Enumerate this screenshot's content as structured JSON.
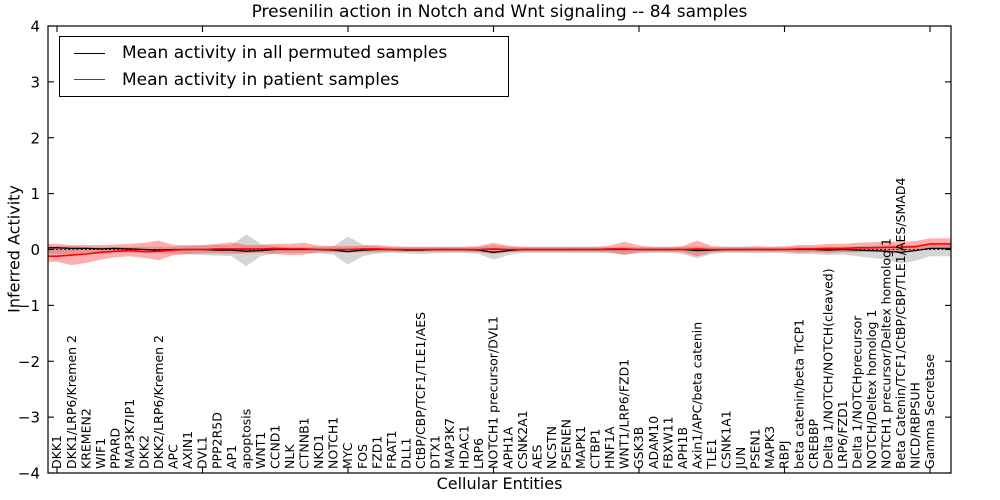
{
  "figure": {
    "title": "Presenilin action in Notch and Wnt signaling -- 84 samples",
    "xlabel": "Cellular Entities",
    "ylabel": "Inferred Activity",
    "yticks": [
      -4,
      -3,
      -2,
      -1,
      0,
      1,
      2,
      3,
      4
    ],
    "xtick_interval": 10,
    "frame_color": "#000000",
    "background": "#ffffff"
  },
  "chart_data": {
    "type": "line",
    "title": "Presenilin action in Notch and Wnt signaling -- 84 samples",
    "xlabel": "Cellular Entities",
    "ylabel": "Inferred Activity",
    "ylim": [
      -4,
      4
    ],
    "grid": false,
    "legend_position": "upper left",
    "zero_line": {
      "style": "dotted",
      "color": "#000000",
      "y": 0
    },
    "categories": [
      "DKK1",
      "DKK1/LRP6/Kremen 2",
      "KREMEN2",
      "WIF1",
      "PPARD",
      "MAP3K7IP1",
      "DKK2",
      "DKK2/LRP6/Kremen 2",
      "APC",
      "AXIN1",
      "DVL1",
      "PPP2R5D",
      "AP1",
      "apoptosis",
      "WNT1",
      "CCND1",
      "NLK",
      "CTNNB1",
      "NKD1",
      "NOTCH1",
      "MYC",
      "FOS",
      "FZD1",
      "FRAT1",
      "DLL1",
      "CtBP/CBP/TCF1/TLE1/AES",
      "DTX1",
      "MAP3K7",
      "HDAC1",
      "LRP6",
      "NOTCH1 precursor/DVL1",
      "APH1A",
      "CSNK2A1",
      "AES",
      "NCSTN",
      "PSENEN",
      "MAPK1",
      "CTBP1",
      "HNF1A",
      "WNT1/LRP6/FZD1",
      "GSK3B",
      "ADAM10",
      "FBXW11",
      "APH1B",
      "Axin1/APC/beta catenin",
      "TLE1",
      "CSNK1A1",
      "JUN",
      "PSEN1",
      "MAPK3",
      "RBPJ",
      "beta catenin/beta TrCP1",
      "CREBBP",
      "Delta 1/NOTCH/NOTCH(cleaved)",
      "LRP6/FZD1",
      "Delta 1/NOTCHprecursor",
      "NOTCH/Deltex homolog 1",
      "NOTCH1 precursor/Deltex homolog 1",
      "Beta Catenin/TCF1/CtBP/CBP/TLE1/AES/SMAD4",
      "NICD/RBPSUH",
      "Gamma Secretase"
    ],
    "series": [
      {
        "name": "Mean activity in all permuted samples",
        "color": "#000000",
        "band_color": "rgba(115,115,115,0.30)",
        "values": [
          0.03,
          0.02,
          0.02,
          0.01,
          0.02,
          0.01,
          0.0,
          -0.01,
          0.0,
          0.0,
          0.0,
          -0.01,
          -0.01,
          -0.03,
          -0.02,
          0.0,
          0.0,
          0.0,
          0.0,
          -0.01,
          -0.04,
          -0.01,
          0.0,
          0.0,
          -0.01,
          -0.01,
          0.0,
          0.0,
          0.0,
          -0.01,
          -0.05,
          -0.02,
          0.0,
          0.0,
          0.0,
          0.0,
          0.0,
          0.0,
          0.0,
          0.0,
          0.0,
          0.0,
          0.0,
          0.0,
          -0.02,
          -0.01,
          0.0,
          0.0,
          0.0,
          0.0,
          0.0,
          0.0,
          0.0,
          -0.01,
          0.0,
          -0.01,
          -0.02,
          -0.03,
          -0.05,
          -0.02,
          0.02
        ],
        "band_upper": [
          0.06,
          0.06,
          0.05,
          0.05,
          0.05,
          0.05,
          0.05,
          0.05,
          0.05,
          0.06,
          0.07,
          0.08,
          0.08,
          0.27,
          0.1,
          0.06,
          0.04,
          0.04,
          0.05,
          0.06,
          0.23,
          0.09,
          0.05,
          0.04,
          0.04,
          0.04,
          0.04,
          0.04,
          0.04,
          0.05,
          0.08,
          0.05,
          0.04,
          0.04,
          0.04,
          0.04,
          0.04,
          0.04,
          0.04,
          0.05,
          0.04,
          0.04,
          0.04,
          0.05,
          0.06,
          0.04,
          0.04,
          0.04,
          0.04,
          0.04,
          0.04,
          0.05,
          0.05,
          0.05,
          0.05,
          0.06,
          0.07,
          0.07,
          0.08,
          0.08,
          0.08
        ],
        "band_lower": [
          -0.08,
          -0.08,
          -0.07,
          -0.07,
          -0.06,
          -0.06,
          -0.06,
          -0.07,
          -0.08,
          -0.09,
          -0.1,
          -0.11,
          -0.12,
          -0.3,
          -0.12,
          -0.07,
          -0.06,
          -0.06,
          -0.07,
          -0.09,
          -0.27,
          -0.12,
          -0.07,
          -0.06,
          -0.07,
          -0.08,
          -0.07,
          -0.06,
          -0.06,
          -0.08,
          -0.18,
          -0.1,
          -0.06,
          -0.06,
          -0.06,
          -0.06,
          -0.07,
          -0.06,
          -0.07,
          -0.08,
          -0.07,
          -0.06,
          -0.06,
          -0.08,
          -0.16,
          -0.08,
          -0.06,
          -0.06,
          -0.07,
          -0.06,
          -0.07,
          -0.08,
          -0.08,
          -0.1,
          -0.09,
          -0.12,
          -0.15,
          -0.18,
          -0.25,
          -0.2,
          -0.12
        ]
      },
      {
        "name": "Mean activity in patient samples",
        "color": "#ff0000",
        "band_color": "rgba(255,40,40,0.38)",
        "values": [
          -0.12,
          -0.1,
          -0.08,
          -0.05,
          -0.03,
          -0.02,
          -0.04,
          -0.03,
          -0.01,
          0.0,
          0.0,
          0.01,
          0.01,
          0.01,
          0.01,
          0.02,
          0.01,
          0.01,
          0.0,
          0.0,
          0.0,
          0.01,
          0.01,
          0.0,
          0.0,
          0.0,
          0.0,
          0.0,
          0.0,
          0.0,
          0.01,
          0.0,
          0.0,
          0.0,
          0.0,
          0.0,
          0.0,
          0.0,
          0.01,
          0.01,
          0.0,
          0.0,
          0.0,
          0.0,
          0.01,
          0.0,
          0.0,
          0.0,
          0.0,
          0.0,
          0.0,
          0.01,
          0.01,
          0.02,
          0.02,
          0.03,
          0.03,
          0.04,
          0.04,
          0.05,
          0.1
        ],
        "band_upper": [
          0.1,
          0.08,
          0.08,
          0.08,
          0.09,
          0.1,
          0.12,
          0.16,
          0.08,
          0.08,
          0.08,
          0.1,
          0.13,
          0.08,
          0.08,
          0.1,
          0.1,
          0.12,
          0.07,
          0.06,
          0.06,
          0.07,
          0.08,
          0.06,
          0.05,
          0.05,
          0.05,
          0.05,
          0.05,
          0.06,
          0.12,
          0.07,
          0.05,
          0.05,
          0.05,
          0.05,
          0.05,
          0.05,
          0.07,
          0.14,
          0.07,
          0.05,
          0.05,
          0.06,
          0.16,
          0.06,
          0.05,
          0.05,
          0.06,
          0.05,
          0.06,
          0.08,
          0.08,
          0.1,
          0.1,
          0.12,
          0.13,
          0.14,
          0.14,
          0.15,
          0.2
        ],
        "band_lower": [
          -0.22,
          -0.28,
          -0.24,
          -0.18,
          -0.14,
          -0.12,
          -0.15,
          -0.19,
          -0.1,
          -0.08,
          -0.07,
          -0.07,
          -0.08,
          -0.07,
          -0.06,
          -0.08,
          -0.1,
          -0.09,
          -0.05,
          -0.05,
          -0.05,
          -0.05,
          -0.05,
          -0.04,
          -0.04,
          -0.04,
          -0.04,
          -0.04,
          -0.04,
          -0.05,
          -0.08,
          -0.05,
          -0.04,
          -0.04,
          -0.04,
          -0.04,
          -0.04,
          -0.04,
          -0.05,
          -0.1,
          -0.05,
          -0.04,
          -0.04,
          -0.05,
          -0.12,
          -0.05,
          -0.04,
          -0.04,
          -0.04,
          -0.04,
          -0.04,
          -0.06,
          -0.05,
          -0.06,
          -0.05,
          -0.05,
          -0.04,
          -0.04,
          -0.03,
          -0.02,
          0.0
        ]
      }
    ]
  }
}
